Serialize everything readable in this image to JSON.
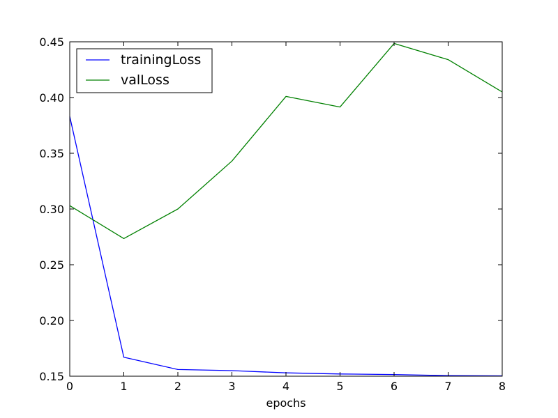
{
  "chart_data": {
    "type": "line",
    "title": "",
    "xlabel": "epochs",
    "ylabel": "",
    "xlim": [
      0,
      8
    ],
    "ylim": [
      0.15,
      0.45
    ],
    "xticks": [
      0,
      1,
      2,
      3,
      4,
      5,
      6,
      7,
      8
    ],
    "yticks": [
      0.15,
      0.2,
      0.25,
      0.3,
      0.35,
      0.4,
      0.45
    ],
    "ytick_labels": [
      "0.15",
      "0.20",
      "0.25",
      "0.30",
      "0.35",
      "0.40",
      "0.45"
    ],
    "xtick_labels": [
      "0",
      "1",
      "2",
      "3",
      "4",
      "5",
      "6",
      "7",
      "8"
    ],
    "grid": false,
    "legend_position": "top-left",
    "x": [
      0,
      1,
      2,
      3,
      4,
      5,
      6,
      7,
      8
    ],
    "series": [
      {
        "name": "trainingLoss",
        "color": "#0000ff",
        "values": [
          0.383,
          0.167,
          0.156,
          0.155,
          0.153,
          0.152,
          0.1515,
          0.1505,
          0.1503
        ]
      },
      {
        "name": "valLoss",
        "color": "#008000",
        "values": [
          0.303,
          0.2735,
          0.3,
          0.343,
          0.401,
          0.3915,
          0.4485,
          0.434,
          0.405
        ]
      }
    ]
  }
}
